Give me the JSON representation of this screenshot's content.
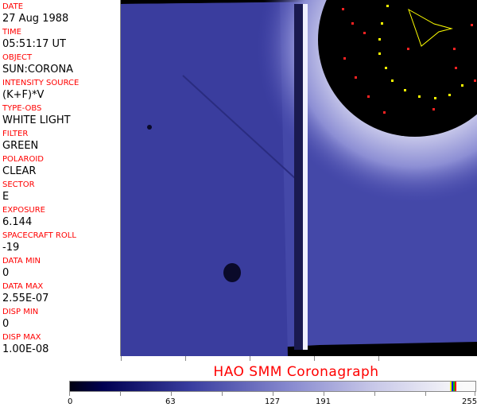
{
  "fields": [
    {
      "label": "DATE",
      "value": "27 Aug 1988"
    },
    {
      "label": "TIME",
      "value": "05:51:17 UT"
    },
    {
      "label": "OBJECT",
      "value": "SUN:CORONA"
    },
    {
      "label": "INTENSITY SOURCE",
      "value": "(K+F)*V"
    },
    {
      "label": "TYPE-OBS",
      "value": "WHITE LIGHT"
    },
    {
      "label": "FILTER",
      "value": "GREEN"
    },
    {
      "label": "POLAROID",
      "value": "CLEAR"
    },
    {
      "label": "SECTOR",
      "value": "E"
    },
    {
      "label": "EXPOSURE",
      "value": "6.144"
    },
    {
      "label": "SPACECRAFT ROLL",
      "value": "-19"
    },
    {
      "label": "DATA MIN",
      "value": "0"
    },
    {
      "label": "DATA MAX",
      "value": "2.55E-07"
    },
    {
      "label": "DISP MIN",
      "value": "0"
    },
    {
      "label": "DISP MAX",
      "value": "1.00E-08"
    }
  ],
  "title": "HAO  SMM Coronagraph",
  "colorbar": {
    "ticks": [
      "0",
      "63",
      "127",
      "191",
      "255"
    ],
    "colors": [
      "#000010",
      "#3a3ea0",
      "#fafafa",
      "#ffff00",
      "#0000ff",
      "#00c000",
      "#ff0000"
    ]
  }
}
